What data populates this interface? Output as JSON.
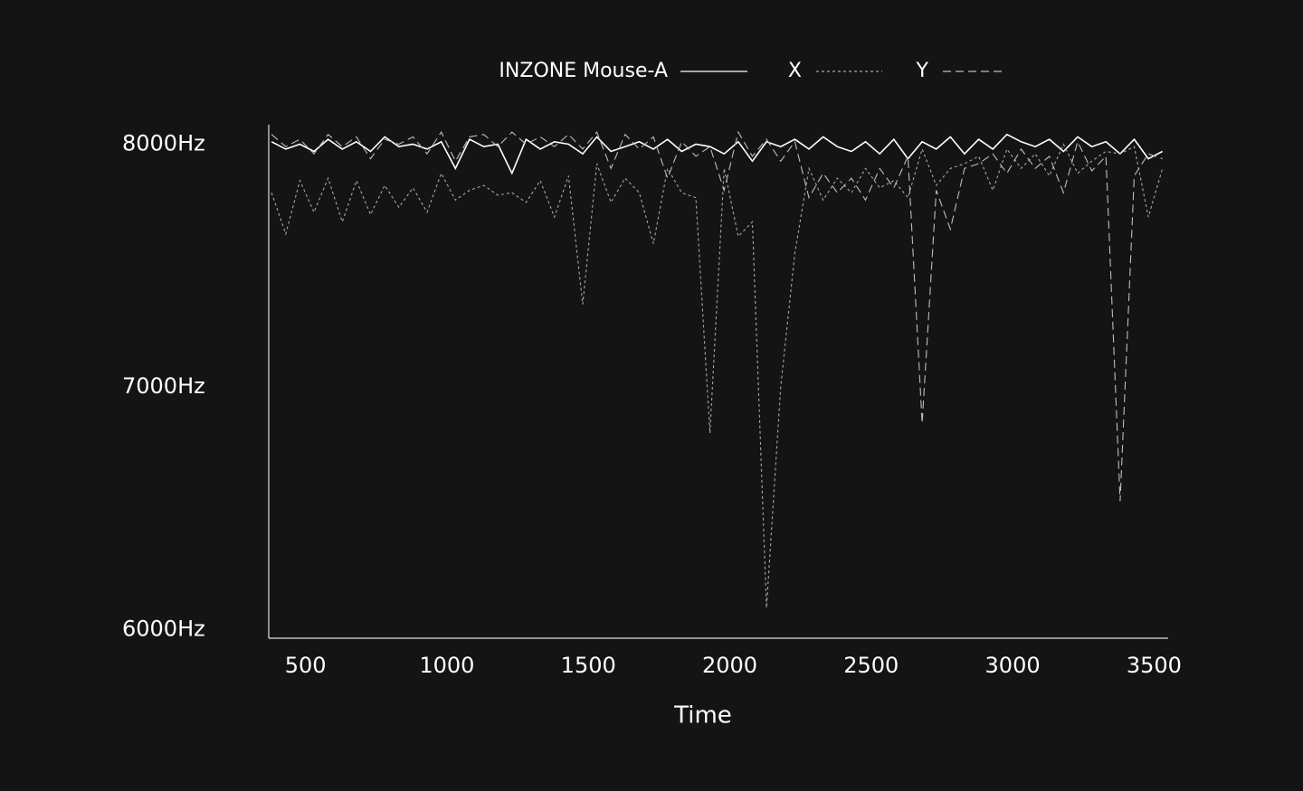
{
  "chart_data": {
    "type": "line",
    "x_label": "Time",
    "xlim": [
      370,
      3550
    ],
    "ylim": [
      5965,
      8080
    ],
    "xticks": [
      500,
      1000,
      1500,
      2000,
      2500,
      3000,
      3500
    ],
    "yticks": [
      {
        "value": 6000,
        "label": "6000Hz"
      },
      {
        "value": 7000,
        "label": "7000Hz"
      },
      {
        "value": 8000,
        "label": "8000Hz"
      }
    ],
    "legend": "top",
    "x": [
      380,
      430,
      480,
      530,
      580,
      630,
      680,
      730,
      780,
      830,
      880,
      930,
      980,
      1030,
      1080,
      1130,
      1180,
      1230,
      1280,
      1330,
      1380,
      1430,
      1480,
      1530,
      1580,
      1630,
      1680,
      1730,
      1780,
      1830,
      1880,
      1930,
      1980,
      2030,
      2080,
      2130,
      2180,
      2230,
      2280,
      2330,
      2380,
      2430,
      2480,
      2530,
      2580,
      2630,
      2680,
      2730,
      2780,
      2830,
      2880,
      2930,
      2980,
      3030,
      3080,
      3130,
      3180,
      3230,
      3280,
      3330,
      3380,
      3430,
      3480,
      3530
    ],
    "series": [
      {
        "name": "INZONE Mouse-A",
        "color": "#ffffff",
        "dash": "solid",
        "values": [
          8010,
          7980,
          8000,
          7970,
          8020,
          7980,
          8010,
          7970,
          8030,
          7990,
          8000,
          7980,
          8010,
          7900,
          8020,
          7990,
          8000,
          7880,
          8020,
          7980,
          8010,
          8000,
          7960,
          8030,
          7970,
          7990,
          8010,
          7980,
          8020,
          7970,
          8000,
          7990,
          7960,
          8010,
          7930,
          8010,
          7990,
          8020,
          7980,
          8030,
          7990,
          7970,
          8010,
          7960,
          8020,
          7940,
          8010,
          7980,
          8030,
          7960,
          8020,
          7980,
          8040,
          8010,
          7990,
          8020,
          7970,
          8030,
          7990,
          8010,
          7960,
          8020,
          7940,
          7970
        ]
      },
      {
        "name": "X",
        "color": "#a8a8a8",
        "dash": "dotted",
        "values": [
          7800,
          7630,
          7850,
          7720,
          7860,
          7680,
          7850,
          7710,
          7830,
          7740,
          7820,
          7720,
          7880,
          7770,
          7810,
          7830,
          7790,
          7800,
          7760,
          7850,
          7700,
          7870,
          7340,
          7920,
          7760,
          7860,
          7800,
          7590,
          7900,
          7800,
          7780,
          6810,
          7900,
          7620,
          7680,
          6090,
          7000,
          7550,
          7900,
          7770,
          7860,
          7800,
          7900,
          7820,
          7850,
          7780,
          7980,
          7830,
          7900,
          7920,
          7950,
          7810,
          7980,
          7900,
          7960,
          7870,
          8000,
          7880,
          7930,
          7970,
          7960,
          7990,
          7700,
          7900
        ]
      },
      {
        "name": "Y",
        "color": "#bdbdbd",
        "dash": "dashed",
        "values": [
          8040,
          7990,
          8020,
          7960,
          8040,
          7990,
          8030,
          7940,
          8020,
          8000,
          8030,
          7960,
          8050,
          7930,
          8030,
          8040,
          7990,
          8050,
          8000,
          8030,
          7990,
          8040,
          7980,
          8050,
          7900,
          8040,
          7980,
          8030,
          7860,
          8010,
          7950,
          7990,
          7810,
          8050,
          7950,
          8020,
          7930,
          8010,
          7780,
          7880,
          7800,
          7860,
          7770,
          7900,
          7820,
          7950,
          6850,
          7810,
          7650,
          7900,
          7920,
          7960,
          7880,
          7980,
          7900,
          7950,
          7800,
          8010,
          7890,
          7950,
          6530,
          7870,
          7960,
          7940
        ]
      }
    ]
  }
}
